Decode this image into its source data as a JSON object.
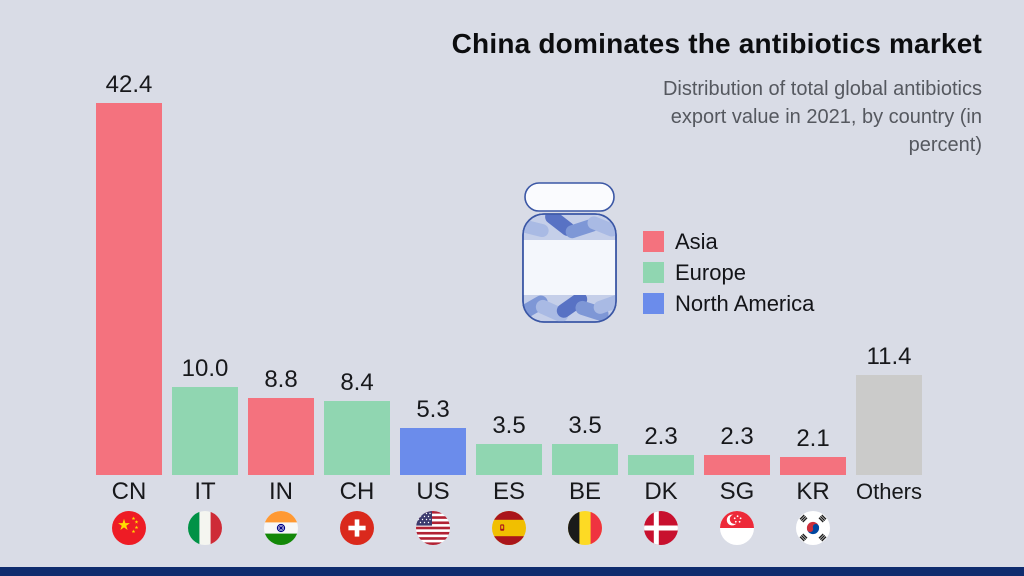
{
  "header": {
    "title": "China dominates the antibiotics market",
    "subtitle": "Distribution of total global antibiotics export value in 2021, by country (in percent)",
    "subtitle_lines": [
      "Distribution of total global antibiotics",
      "export value in 2021, by country (in",
      "percent)"
    ]
  },
  "legend": [
    {
      "label": "Asia",
      "color": "#F4727E"
    },
    {
      "label": "Europe",
      "color": "#90D6B1"
    },
    {
      "label": "North America",
      "color": "#6B8CEB"
    }
  ],
  "icons": {
    "bottle": "pill-bottle-icon",
    "flags": [
      "cn-flag-icon",
      "it-flag-icon",
      "in-flag-icon",
      "ch-flag-icon",
      "us-flag-icon",
      "es-flag-icon",
      "be-flag-icon",
      "dk-flag-icon",
      "sg-flag-icon",
      "kr-flag-icon"
    ]
  },
  "chart_data": {
    "type": "bar",
    "title": "China dominates the antibiotics market",
    "subtitle": "Distribution of total global antibiotics export value in 2021, by country (in percent)",
    "unit": "percent",
    "categories": [
      "CN",
      "IT",
      "IN",
      "CH",
      "US",
      "ES",
      "BE",
      "DK",
      "SG",
      "KR",
      "Others"
    ],
    "values": [
      42.4,
      10.0,
      8.8,
      8.4,
      5.3,
      3.5,
      3.5,
      2.3,
      2.3,
      2.1,
      11.4
    ],
    "regions": [
      "Asia",
      "Europe",
      "Asia",
      "Europe",
      "North America",
      "Europe",
      "Europe",
      "Europe",
      "Asia",
      "Asia",
      "Others"
    ],
    "flags": [
      "cn",
      "it",
      "in",
      "ch",
      "us",
      "es",
      "be",
      "dk",
      "sg",
      "kr",
      null
    ],
    "region_colors": {
      "Asia": "#F4727E",
      "Europe": "#90D6B1",
      "North America": "#6B8CEB",
      "Others": "#CBCBCA"
    },
    "value_labels": true,
    "grid": false,
    "axes_shown": false,
    "ylim": [
      0,
      45
    ],
    "legend_position": "center-right"
  },
  "colors": {
    "background": "#D9DCE6",
    "footer_bar": "#0F2C6E",
    "title_text": "#0C0D0F",
    "subtitle_text": "#55585F",
    "label_text": "#17181B"
  }
}
